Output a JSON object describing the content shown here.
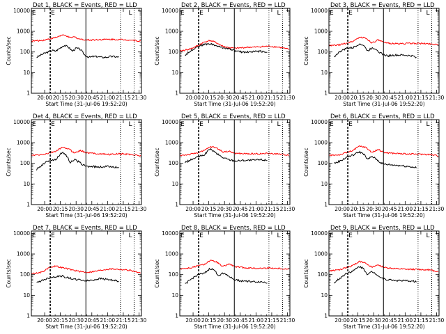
{
  "panel_titles": [
    "Det 1, BLACK = Events, RED = LLD",
    "Det 2, BLACK = Events, RED = LLD",
    "Det 3, BLACK = Events, RED = LLD",
    "Det 4, BLACK = Events, RED = LLD",
    "Det 5, BLACK = Events, RED = LLD",
    "Det 6, BLACK = Events, RED = LLD",
    "Det 7, BLACK = Events, RED = LLD",
    "Det 8, BLACK = Events, RED = LLD",
    "Det 9, BLACK = Events, RED = LLD"
  ],
  "xlabel": "Start Time (31-Jul-06 19:52:20)",
  "ylabel": "Counts/sec",
  "x_tick_labels": [
    "20:00",
    "20:15",
    "20:30",
    "20:45",
    "21:00",
    "21:15",
    "21:30"
  ],
  "y_tick_labels": [
    "1",
    "10",
    "100",
    "1000",
    "10000"
  ],
  "corner_markers": [
    "E",
    "E",
    "L"
  ],
  "colors": {
    "events": "#000000",
    "lld": "#ff0000",
    "axes": "#000000"
  },
  "chart_data": {
    "type": "line",
    "layout": "3x3 grid",
    "x_range_minutes_after_start": [
      -5,
      100
    ],
    "x_ticks_minutes_after_start": [
      7.67,
      22.67,
      37.67,
      52.67,
      67.67,
      82.67,
      97.67
    ],
    "y_scale": "log",
    "ylim": [
      1,
      13000
    ],
    "vertical_markers": [
      {
        "x": 13,
        "style": "dashed"
      },
      {
        "x": 47,
        "style": "solid"
      },
      {
        "x": 80,
        "style": "dotted"
      },
      {
        "x": 93,
        "style": "dotted"
      }
    ],
    "panels": [
      {
        "title_index": 0,
        "series": [
          {
            "name": "Events",
            "color": "#000000",
            "x": [
              0,
              6,
              12,
              15,
              18,
              22,
              26,
              30,
              34,
              38,
              42,
              46,
              50,
              54,
              58,
              62,
              66,
              70,
              74,
              79
            ],
            "y": [
              55,
              80,
              105,
              120,
              110,
              150,
              210,
              180,
              110,
              155,
              130,
              70,
              55,
              60,
              60,
              55,
              55,
              60,
              60,
              55
            ]
          },
          {
            "name": "LLD",
            "color": "#ff0000",
            "x": [
              -5,
              5,
              12,
              18,
              24,
              28,
              32,
              36,
              40,
              44,
              50,
              60,
              70,
              80,
              90,
              100
            ],
            "y": [
              340,
              360,
              430,
              500,
              650,
              620,
              480,
              540,
              440,
              400,
              380,
              400,
              410,
              400,
              380,
              330
            ]
          }
        ]
      },
      {
        "title_index": 1,
        "series": [
          {
            "name": "Events",
            "color": "#000000",
            "x": [
              0,
              6,
              12,
              18,
              24,
              30,
              36,
              42,
              48,
              54,
              60,
              66,
              72,
              79
            ],
            "y": [
              70,
              120,
              190,
              230,
              250,
              200,
              160,
              150,
              110,
              100,
              100,
              105,
              110,
              95
            ]
          },
          {
            "name": "LLD",
            "color": "#ff0000",
            "x": [
              -5,
              5,
              12,
              18,
              24,
              30,
              36,
              42,
              48,
              54,
              60,
              66,
              72,
              80,
              90,
              100
            ],
            "y": [
              110,
              140,
              200,
              300,
              360,
              280,
              190,
              160,
              150,
              160,
              170,
              170,
              180,
              190,
              170,
              130
            ]
          }
        ]
      },
      {
        "title_index": 2,
        "series": [
          {
            "name": "Events",
            "color": "#000000",
            "x": [
              0,
              6,
              12,
              18,
              24,
              28,
              32,
              36,
              40,
              44,
              48,
              52,
              58,
              66,
              74,
              79
            ],
            "y": [
              60,
              110,
              150,
              160,
              250,
              210,
              110,
              160,
              140,
              90,
              70,
              65,
              70,
              70,
              65,
              55
            ]
          },
          {
            "name": "LLD",
            "color": "#ff0000",
            "x": [
              -5,
              5,
              12,
              18,
              24,
              30,
              36,
              42,
              48,
              60,
              70,
              80,
              90,
              100
            ],
            "y": [
              200,
              220,
              270,
              330,
              520,
              470,
              280,
              380,
              280,
              250,
              260,
              260,
              250,
              230
            ]
          }
        ]
      },
      {
        "title_index": 3,
        "series": [
          {
            "name": "Events",
            "color": "#000000",
            "x": [
              0,
              6,
              12,
              18,
              24,
              28,
              32,
              36,
              40,
              44,
              48,
              54,
              60,
              66,
              72,
              79
            ],
            "y": [
              50,
              90,
              140,
              150,
              330,
              260,
              110,
              150,
              120,
              85,
              70,
              70,
              65,
              70,
              70,
              60
            ]
          },
          {
            "name": "LLD",
            "color": "#ff0000",
            "x": [
              -5,
              5,
              12,
              18,
              24,
              30,
              36,
              42,
              48,
              60,
              70,
              80,
              90,
              100
            ],
            "y": [
              240,
              260,
              310,
              380,
              580,
              520,
              320,
              420,
              320,
              290,
              270,
              290,
              270,
              230
            ]
          }
        ]
      },
      {
        "title_index": 4,
        "series": [
          {
            "name": "Events",
            "color": "#000000",
            "x": [
              0,
              6,
              12,
              18,
              24,
              30,
              36,
              42,
              48,
              56,
              64,
              72,
              79
            ],
            "y": [
              110,
              150,
              200,
              250,
              500,
              300,
              190,
              150,
              130,
              140,
              140,
              150,
              140
            ]
          },
          {
            "name": "LLD",
            "color": "#ff0000",
            "x": [
              -5,
              5,
              12,
              18,
              24,
              30,
              36,
              42,
              48,
              60,
              70,
              80,
              90,
              100
            ],
            "y": [
              240,
              270,
              330,
              400,
              640,
              560,
              360,
              380,
              300,
              290,
              290,
              300,
              280,
              250
            ]
          }
        ]
      },
      {
        "title_index": 5,
        "series": [
          {
            "name": "Events",
            "color": "#000000",
            "x": [
              0,
              6,
              12,
              18,
              24,
              28,
              32,
              36,
              40,
              44,
              48,
              54,
              60,
              66,
              72,
              79
            ],
            "y": [
              100,
              130,
              200,
              250,
              360,
              290,
              150,
              220,
              160,
              110,
              90,
              85,
              80,
              75,
              70,
              60
            ]
          },
          {
            "name": "LLD",
            "color": "#ff0000",
            "x": [
              -5,
              5,
              12,
              18,
              24,
              30,
              36,
              42,
              48,
              60,
              70,
              80,
              90,
              100
            ],
            "y": [
              240,
              260,
              330,
              420,
              680,
              600,
              340,
              460,
              330,
              300,
              280,
              280,
              270,
              230
            ]
          }
        ]
      },
      {
        "title_index": 6,
        "series": [
          {
            "name": "Events",
            "color": "#000000",
            "x": [
              0,
              6,
              12,
              18,
              24,
              30,
              36,
              42,
              48,
              54,
              60,
              66,
              72,
              79
            ],
            "y": [
              40,
              55,
              70,
              80,
              85,
              70,
              60,
              55,
              50,
              55,
              65,
              60,
              55,
              45
            ]
          },
          {
            "name": "LLD",
            "color": "#ff0000",
            "x": [
              -5,
              5,
              12,
              18,
              24,
              30,
              36,
              42,
              48,
              54,
              60,
              66,
              72,
              80,
              90,
              100
            ],
            "y": [
              110,
              130,
              220,
              260,
              220,
              190,
              160,
              140,
              130,
              140,
              160,
              180,
              190,
              180,
              160,
              110
            ]
          }
        ]
      },
      {
        "title_index": 7,
        "series": [
          {
            "name": "Events",
            "color": "#000000",
            "x": [
              0,
              6,
              12,
              18,
              24,
              28,
              32,
              36,
              40,
              44,
              48,
              54,
              60,
              66,
              72,
              79
            ],
            "y": [
              35,
              60,
              100,
              110,
              200,
              160,
              90,
              120,
              100,
              70,
              55,
              50,
              48,
              45,
              45,
              40
            ]
          },
          {
            "name": "LLD",
            "color": "#ff0000",
            "x": [
              -5,
              5,
              12,
              18,
              24,
              30,
              36,
              42,
              48,
              60,
              70,
              80,
              90,
              100
            ],
            "y": [
              190,
              210,
              260,
              310,
              480,
              410,
              240,
              330,
              240,
              210,
              200,
              210,
              200,
              180
            ]
          }
        ]
      },
      {
        "title_index": 8,
        "series": [
          {
            "name": "Events",
            "color": "#000000",
            "x": [
              0,
              6,
              12,
              18,
              24,
              28,
              32,
              36,
              40,
              44,
              48,
              54,
              60,
              66,
              72,
              79
            ],
            "y": [
              40,
              70,
              120,
              150,
              250,
              200,
              100,
              140,
              110,
              75,
              60,
              55,
              52,
              50,
              50,
              45
            ]
          },
          {
            "name": "LLD",
            "color": "#ff0000",
            "x": [
              -5,
              5,
              12,
              18,
              24,
              30,
              36,
              42,
              48,
              60,
              70,
              80,
              90,
              100
            ],
            "y": [
              150,
              170,
              220,
              280,
              430,
              380,
              220,
              300,
              220,
              190,
              180,
              180,
              170,
              140
            ]
          }
        ]
      }
    ]
  }
}
